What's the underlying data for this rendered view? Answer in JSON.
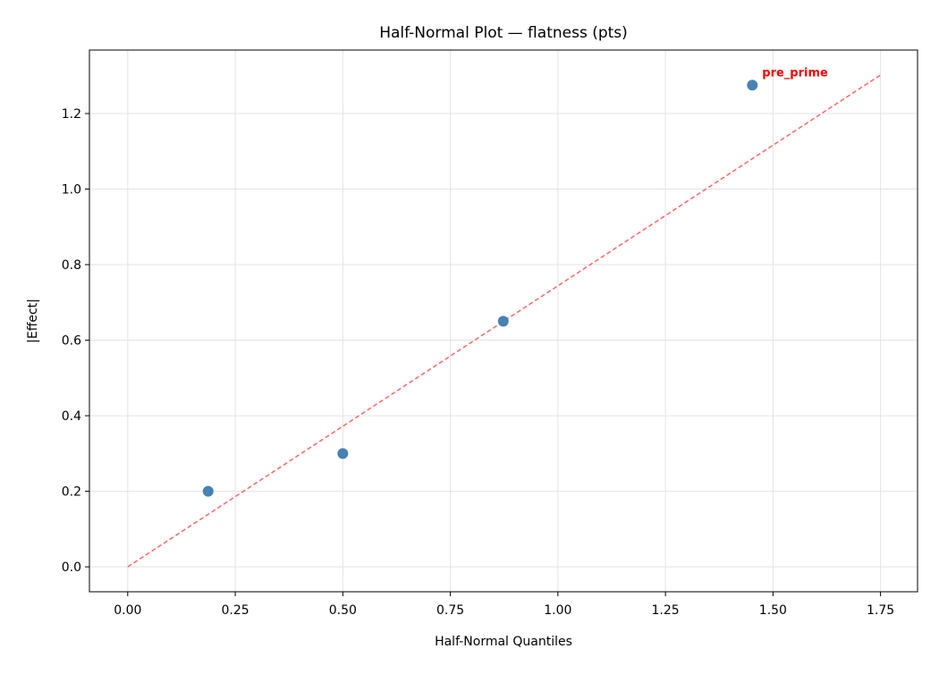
{
  "chart_data": {
    "type": "scatter",
    "title": "Half-Normal Plot — flatness (pts)",
    "xlabel": "Half-Normal Quantiles",
    "ylabel": "|Effect|",
    "xlim": [
      -0.089,
      1.836
    ],
    "ylim": [
      -0.066,
      1.368
    ],
    "xticks": [
      0.0,
      0.25,
      0.5,
      0.75,
      1.0,
      1.25,
      1.5,
      1.75
    ],
    "xtick_labels": [
      "0.00",
      "0.25",
      "0.50",
      "0.75",
      "1.00",
      "1.25",
      "1.50",
      "1.75"
    ],
    "yticks": [
      0.0,
      0.2,
      0.4,
      0.6,
      0.8,
      1.0,
      1.2
    ],
    "ytick_labels": [
      "0.0",
      "0.2",
      "0.4",
      "0.6",
      "0.8",
      "1.0",
      "1.2"
    ],
    "grid": true,
    "points": [
      {
        "x": 0.187,
        "y": 0.2
      },
      {
        "x": 0.5,
        "y": 0.3
      },
      {
        "x": 0.873,
        "y": 0.65
      },
      {
        "x": 1.452,
        "y": 1.275,
        "label": "pre_prime"
      }
    ],
    "reference_line": {
      "x": [
        0,
        1.75
      ],
      "y": [
        0,
        1.302
      ],
      "style": "dashed",
      "color": "#ff6666"
    },
    "point_color": "#4682b4",
    "label_color": "#ff0000"
  }
}
